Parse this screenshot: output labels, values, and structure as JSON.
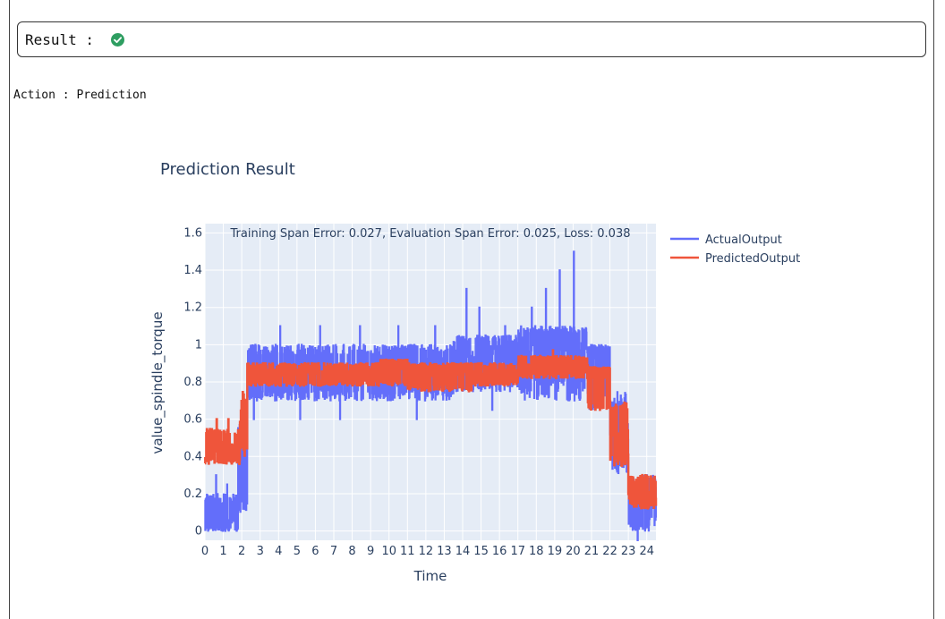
{
  "result": {
    "label": "Result : ",
    "status_icon": "check-circle-icon",
    "status_color": "#2e9e61"
  },
  "action": {
    "text": "Action : Prediction"
  },
  "chart_data": {
    "type": "line",
    "title": "Prediction Result",
    "annotation": "Training Span Error:  0.027, Evaluation Span Error:  0.025, Loss: 0.038",
    "xlabel": "Time",
    "ylabel": "value_spindle_torque",
    "xlim": [
      0,
      24.5
    ],
    "ylim": [
      -0.05,
      1.65
    ],
    "x_ticks": [
      0,
      1,
      2,
      3,
      4,
      5,
      6,
      7,
      8,
      9,
      10,
      11,
      12,
      13,
      14,
      15,
      16,
      17,
      18,
      19,
      20,
      21,
      22,
      23,
      24
    ],
    "y_ticks": [
      0,
      0.2,
      0.4,
      0.6,
      0.8,
      1,
      1.2,
      1.4,
      1.6
    ],
    "y_tick_labels": [
      "0",
      "0.2",
      "0.4",
      "0.6",
      "0.8",
      "1",
      "1.2",
      "1.4",
      "1.6"
    ],
    "grid": true,
    "plot_bg": "#e5ecf6",
    "legend_position": "right",
    "series": [
      {
        "name": "ActualOutput",
        "color": "#636efa",
        "line_width": 2,
        "segments": [
          {
            "x": [
              0,
              1.8
            ],
            "base": 0.05,
            "low": 0.0,
            "high": 0.2,
            "spikes": [
              0.3,
              0.25
            ]
          },
          {
            "x": [
              1.8,
              2.3
            ],
            "base": 0.3,
            "low": 0.1,
            "high": 0.6
          },
          {
            "x": [
              2.3,
              3.0
            ],
            "base": 0.85,
            "low": 0.7,
            "high": 1.0,
            "spikes": [
              0.6
            ]
          },
          {
            "x": [
              3.0,
              9.5
            ],
            "base": 0.85,
            "low": 0.7,
            "high": 1.0,
            "spikes": [
              1.1,
              0.6,
              1.1,
              0.6,
              1.1
            ]
          },
          {
            "x": [
              9.5,
              13.5
            ],
            "base": 0.9,
            "low": 0.7,
            "high": 1.0,
            "spikes": [
              1.1,
              0.6,
              1.1
            ]
          },
          {
            "x": [
              13.5,
              17.0
            ],
            "base": 0.95,
            "low": 0.75,
            "high": 1.05,
            "spikes": [
              1.3,
              1.2,
              0.65,
              1.1
            ]
          },
          {
            "x": [
              17.0,
              20.8
            ],
            "base": 1.0,
            "low": 0.7,
            "high": 1.1,
            "spikes": [
              1.2,
              1.3,
              1.4,
              1.5
            ]
          },
          {
            "x": [
              20.8,
              22.0
            ],
            "base": 0.95,
            "low": 0.65,
            "high": 1.0
          },
          {
            "x": [
              22.0,
              23.0
            ],
            "base": 0.55,
            "low": 0.3,
            "high": 0.75
          },
          {
            "x": [
              23.0,
              24.5
            ],
            "base": 0.2,
            "low": 0.0,
            "high": 0.3,
            "spikes": [
              -0.05,
              0.3
            ]
          }
        ]
      },
      {
        "name": "PredictedOutput",
        "color": "#ef553b",
        "line_width": 2.5,
        "segments": [
          {
            "x": [
              0,
              1.9
            ],
            "base": 0.45,
            "low": 0.36,
            "high": 0.55,
            "spikes": [
              0.6,
              0.6
            ]
          },
          {
            "x": [
              1.9,
              2.3
            ],
            "base": 0.6,
            "low": 0.4,
            "high": 0.75
          },
          {
            "x": [
              2.3,
              9.5
            ],
            "base": 0.85,
            "low": 0.78,
            "high": 0.9
          },
          {
            "x": [
              9.5,
              11.0
            ],
            "base": 0.86,
            "low": 0.78,
            "high": 0.92
          },
          {
            "x": [
              11.0,
              14.5
            ],
            "base": 0.85,
            "low": 0.75,
            "high": 0.9
          },
          {
            "x": [
              14.5,
              17.0
            ],
            "base": 0.85,
            "low": 0.78,
            "high": 0.9
          },
          {
            "x": [
              17.0,
              20.8
            ],
            "base": 0.9,
            "low": 0.82,
            "high": 0.94,
            "spikes": [
              0.97
            ]
          },
          {
            "x": [
              20.8,
              22.0
            ],
            "base": 0.85,
            "low": 0.65,
            "high": 0.88
          },
          {
            "x": [
              22.0,
              23.0
            ],
            "base": 0.55,
            "low": 0.35,
            "high": 0.7
          },
          {
            "x": [
              23.0,
              24.5
            ],
            "base": 0.2,
            "low": 0.12,
            "high": 0.3
          }
        ]
      }
    ]
  }
}
